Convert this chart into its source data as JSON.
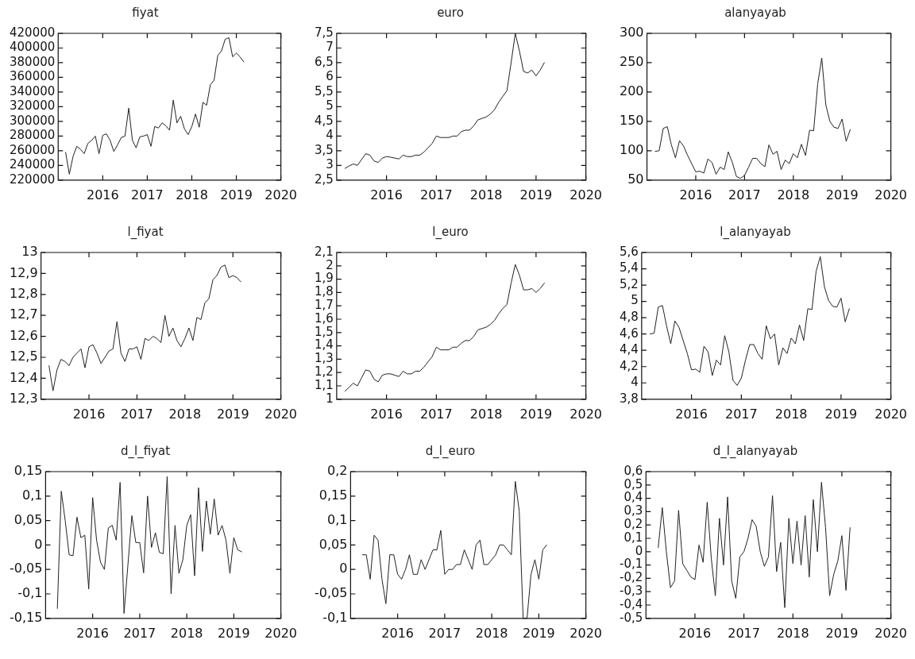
{
  "chart_data": [
    {
      "type": "line",
      "title": "fiyat",
      "x": [
        "2015-03",
        "2015-04",
        "2015-05",
        "2015-06",
        "2015-07",
        "2015-08",
        "2015-09",
        "2015-10",
        "2015-11",
        "2015-12",
        "2016-01",
        "2016-02",
        "2016-03",
        "2016-04",
        "2016-05",
        "2016-06",
        "2016-07",
        "2016-08",
        "2016-09",
        "2016-10",
        "2016-11",
        "2016-12",
        "2017-01",
        "2017-02",
        "2017-03",
        "2017-04",
        "2017-05",
        "2017-06",
        "2017-07",
        "2017-08",
        "2017-09",
        "2017-10",
        "2017-11",
        "2017-12",
        "2018-01",
        "2018-02",
        "2018-03",
        "2018-04",
        "2018-05",
        "2018-06",
        "2018-07",
        "2018-08",
        "2018-09",
        "2018-10",
        "2018-11",
        "2018-12",
        "2019-01",
        "2019-02",
        "2019-03"
      ],
      "xlim": [
        "2015",
        "2020"
      ],
      "xticks": [
        "2016",
        "2017",
        "2018",
        "2019",
        "2020"
      ],
      "ylim": [
        220000,
        420000
      ],
      "yticks": [
        220000,
        240000,
        260000,
        280000,
        300000,
        320000,
        340000,
        360000,
        380000,
        400000,
        420000
      ],
      "series": [
        {
          "color": "#222222",
          "values": [
            258000,
            228000,
            252000,
            266000,
            262000,
            256000,
            270000,
            274000,
            280000,
            256000,
            281000,
            283000,
            274000,
            259000,
            268000,
            278000,
            280000,
            318000,
            274000,
            264000,
            279000,
            280000,
            282000,
            266000,
            293000,
            291000,
            298000,
            294000,
            288000,
            329000,
            298000,
            307000,
            290000,
            282000,
            293000,
            310000,
            292000,
            326000,
            322000,
            350000,
            356000,
            390000,
            396000,
            412000,
            414000,
            388000,
            393000,
            388000,
            381000
          ]
        }
      ]
    },
    {
      "type": "line",
      "title": "euro",
      "x": [
        "2015-03",
        "2015-04",
        "2015-05",
        "2015-06",
        "2015-07",
        "2015-08",
        "2015-09",
        "2015-10",
        "2015-11",
        "2015-12",
        "2016-01",
        "2016-02",
        "2016-03",
        "2016-04",
        "2016-05",
        "2016-06",
        "2016-07",
        "2016-08",
        "2016-09",
        "2016-10",
        "2016-11",
        "2016-12",
        "2017-01",
        "2017-02",
        "2017-03",
        "2017-04",
        "2017-05",
        "2017-06",
        "2017-07",
        "2017-08",
        "2017-09",
        "2017-10",
        "2017-11",
        "2017-12",
        "2018-01",
        "2018-02",
        "2018-03",
        "2018-04",
        "2018-05",
        "2018-06",
        "2018-07",
        "2018-08",
        "2018-09",
        "2018-10",
        "2018-11",
        "2018-12",
        "2019-01",
        "2019-02",
        "2019-03"
      ],
      "xlim": [
        "2015",
        "2020"
      ],
      "xticks": [
        "2016",
        "2017",
        "2018",
        "2019",
        "2020"
      ],
      "ylim": [
        2.5,
        7.5
      ],
      "yticks": [
        {
          "value": 2.5,
          "label": "2,5"
        },
        3,
        {
          "value": 3.5,
          "label": "3,5"
        },
        4,
        {
          "value": 4.5,
          "label": "4,5"
        },
        5,
        {
          "value": 5.5,
          "label": "5,5"
        },
        6,
        {
          "value": 6.5,
          "label": "6,5"
        },
        7,
        {
          "value": 7.5,
          "label": "7,5"
        }
      ],
      "series": [
        {
          "color": "#222222",
          "values": [
            2.9,
            2.98,
            3.05,
            3.0,
            3.2,
            3.4,
            3.35,
            3.15,
            3.1,
            3.25,
            3.3,
            3.28,
            3.25,
            3.22,
            3.35,
            3.3,
            3.3,
            3.35,
            3.35,
            3.45,
            3.6,
            3.75,
            4.0,
            3.95,
            3.95,
            3.95,
            4.0,
            4.0,
            4.15,
            4.2,
            4.2,
            4.35,
            4.55,
            4.6,
            4.65,
            4.75,
            4.9,
            5.15,
            5.35,
            5.55,
            6.5,
            7.5,
            6.9,
            6.2,
            6.15,
            6.25,
            6.05,
            6.25,
            6.5
          ]
        }
      ]
    },
    {
      "type": "line",
      "title": "alanyayab",
      "x": [
        "2015-03",
        "2015-04",
        "2015-05",
        "2015-06",
        "2015-07",
        "2015-08",
        "2015-09",
        "2015-10",
        "2015-11",
        "2015-12",
        "2016-01",
        "2016-02",
        "2016-03",
        "2016-04",
        "2016-05",
        "2016-06",
        "2016-07",
        "2016-08",
        "2016-09",
        "2016-10",
        "2016-11",
        "2016-12",
        "2017-01",
        "2017-02",
        "2017-03",
        "2017-04",
        "2017-05",
        "2017-06",
        "2017-07",
        "2017-08",
        "2017-09",
        "2017-10",
        "2017-11",
        "2017-12",
        "2018-01",
        "2018-02",
        "2018-03",
        "2018-04",
        "2018-05",
        "2018-06",
        "2018-07",
        "2018-08",
        "2018-09",
        "2018-10",
        "2018-11",
        "2018-12",
        "2019-01",
        "2019-02",
        "2019-03"
      ],
      "xlim": [
        "2015",
        "2020"
      ],
      "xticks": [
        "2016",
        "2017",
        "2018",
        "2019",
        "2020"
      ],
      "ylim": [
        50,
        300
      ],
      "yticks": [
        50,
        100,
        150,
        200,
        250,
        300
      ],
      "series": [
        {
          "color": "#222222",
          "values": [
            99,
            100,
            138,
            141,
            110,
            88,
            117,
            108,
            92,
            78,
            64,
            65,
            62,
            86,
            80,
            60,
            72,
            68,
            98,
            80,
            56,
            53,
            58,
            72,
            87,
            87,
            78,
            73,
            110,
            94,
            99,
            68,
            84,
            78,
            95,
            88,
            111,
            92,
            135,
            134,
            214,
            258,
            178,
            150,
            140,
            138,
            154,
            116,
            136
          ]
        }
      ]
    },
    {
      "type": "line",
      "title": "l_fiyat",
      "x": [
        "2015-03",
        "2015-04",
        "2015-05",
        "2015-06",
        "2015-07",
        "2015-08",
        "2015-09",
        "2015-10",
        "2015-11",
        "2015-12",
        "2016-01",
        "2016-02",
        "2016-03",
        "2016-04",
        "2016-05",
        "2016-06",
        "2016-07",
        "2016-08",
        "2016-09",
        "2016-10",
        "2016-11",
        "2016-12",
        "2017-01",
        "2017-02",
        "2017-03",
        "2017-04",
        "2017-05",
        "2017-06",
        "2017-07",
        "2017-08",
        "2017-09",
        "2017-10",
        "2017-11",
        "2017-12",
        "2018-01",
        "2018-02",
        "2018-03",
        "2018-04",
        "2018-05",
        "2018-06",
        "2018-07",
        "2018-08",
        "2018-09",
        "2018-10",
        "2018-11",
        "2018-12",
        "2019-01",
        "2019-02",
        "2019-03"
      ],
      "xlim": [
        "2015",
        "2020"
      ],
      "xticks": [
        "2016",
        "2017",
        "2018",
        "2019",
        "2020"
      ],
      "ylim": [
        12.3,
        13
      ],
      "yticks": [
        {
          "value": 12.3,
          "label": "12,3"
        },
        {
          "value": 12.4,
          "label": "12,4"
        },
        {
          "value": 12.5,
          "label": "12,5"
        },
        {
          "value": 12.6,
          "label": "12,6"
        },
        {
          "value": 12.7,
          "label": "12,7"
        },
        {
          "value": 12.8,
          "label": "12,8"
        },
        {
          "value": 12.9,
          "label": "12,9"
        },
        13
      ],
      "series": [
        {
          "color": "#222222",
          "values": [
            12.46,
            12.34,
            12.44,
            12.49,
            12.48,
            12.46,
            12.5,
            12.52,
            12.54,
            12.45,
            12.55,
            12.56,
            12.52,
            12.47,
            12.5,
            12.53,
            12.54,
            12.67,
            12.52,
            12.48,
            12.54,
            12.54,
            12.55,
            12.49,
            12.59,
            12.58,
            12.6,
            12.59,
            12.57,
            12.7,
            12.6,
            12.64,
            12.58,
            12.55,
            12.59,
            12.64,
            12.58,
            12.69,
            12.68,
            12.76,
            12.78,
            12.87,
            12.89,
            12.93,
            12.94,
            12.88,
            12.89,
            12.88,
            12.86
          ]
        }
      ]
    },
    {
      "type": "line",
      "title": "l_euro",
      "x": [
        "2015-03",
        "2015-04",
        "2015-05",
        "2015-06",
        "2015-07",
        "2015-08",
        "2015-09",
        "2015-10",
        "2015-11",
        "2015-12",
        "2016-01",
        "2016-02",
        "2016-03",
        "2016-04",
        "2016-05",
        "2016-06",
        "2016-07",
        "2016-08",
        "2016-09",
        "2016-10",
        "2016-11",
        "2016-12",
        "2017-01",
        "2017-02",
        "2017-03",
        "2017-04",
        "2017-05",
        "2017-06",
        "2017-07",
        "2017-08",
        "2017-09",
        "2017-10",
        "2017-11",
        "2017-12",
        "2018-01",
        "2018-02",
        "2018-03",
        "2018-04",
        "2018-05",
        "2018-06",
        "2018-07",
        "2018-08",
        "2018-09",
        "2018-10",
        "2018-11",
        "2018-12",
        "2019-01",
        "2019-02",
        "2019-03"
      ],
      "xlim": [
        "2015",
        "2020"
      ],
      "xticks": [
        "2016",
        "2017",
        "2018",
        "2019",
        "2020"
      ],
      "ylim": [
        1,
        2.1
      ],
      "yticks": [
        1,
        {
          "value": 1.1,
          "label": "1,1"
        },
        {
          "value": 1.2,
          "label": "1,2"
        },
        {
          "value": 1.3,
          "label": "1,3"
        },
        {
          "value": 1.4,
          "label": "1,4"
        },
        {
          "value": 1.5,
          "label": "1,5"
        },
        {
          "value": 1.6,
          "label": "1,6"
        },
        {
          "value": 1.7,
          "label": "1,7"
        },
        {
          "value": 1.8,
          "label": "1,8"
        },
        {
          "value": 1.9,
          "label": "1,9"
        },
        2,
        {
          "value": 2.1,
          "label": "2,1"
        }
      ],
      "series": [
        {
          "color": "#222222",
          "values": [
            1.06,
            1.09,
            1.12,
            1.1,
            1.16,
            1.22,
            1.21,
            1.15,
            1.13,
            1.18,
            1.19,
            1.19,
            1.18,
            1.17,
            1.21,
            1.19,
            1.19,
            1.21,
            1.21,
            1.24,
            1.28,
            1.32,
            1.39,
            1.37,
            1.37,
            1.37,
            1.39,
            1.39,
            1.42,
            1.44,
            1.44,
            1.47,
            1.52,
            1.53,
            1.54,
            1.56,
            1.59,
            1.64,
            1.68,
            1.71,
            1.87,
            2.01,
            1.93,
            1.82,
            1.82,
            1.83,
            1.8,
            1.83,
            1.87
          ]
        }
      ]
    },
    {
      "type": "line",
      "title": "l_alanyayab",
      "x": [
        "2015-03",
        "2015-04",
        "2015-05",
        "2015-06",
        "2015-07",
        "2015-08",
        "2015-09",
        "2015-10",
        "2015-11",
        "2015-12",
        "2016-01",
        "2016-02",
        "2016-03",
        "2016-04",
        "2016-05",
        "2016-06",
        "2016-07",
        "2016-08",
        "2016-09",
        "2016-10",
        "2016-11",
        "2016-12",
        "2017-01",
        "2017-02",
        "2017-03",
        "2017-04",
        "2017-05",
        "2017-06",
        "2017-07",
        "2017-08",
        "2017-09",
        "2017-10",
        "2017-11",
        "2017-12",
        "2018-01",
        "2018-02",
        "2018-03",
        "2018-04",
        "2018-05",
        "2018-06",
        "2018-07",
        "2018-08",
        "2018-09",
        "2018-10",
        "2018-11",
        "2018-12",
        "2019-01",
        "2019-02",
        "2019-03"
      ],
      "xlim": [
        "2015",
        "2020"
      ],
      "xticks": [
        "2016",
        "2017",
        "2018",
        "2019",
        "2020"
      ],
      "ylim": [
        3.8,
        5.6
      ],
      "yticks": [
        {
          "value": 3.8,
          "label": "3,8"
        },
        4,
        {
          "value": 4.2,
          "label": "4,2"
        },
        {
          "value": 4.4,
          "label": "4,4"
        },
        {
          "value": 4.6,
          "label": "4,6"
        },
        {
          "value": 4.8,
          "label": "4,8"
        },
        5,
        {
          "value": 5.2,
          "label": "5,2"
        },
        {
          "value": 5.4,
          "label": "5,4"
        },
        {
          "value": 5.6,
          "label": "5,6"
        }
      ],
      "series": [
        {
          "color": "#222222",
          "values": [
            4.6,
            4.61,
            4.93,
            4.95,
            4.7,
            4.48,
            4.76,
            4.68,
            4.52,
            4.36,
            4.16,
            4.17,
            4.13,
            4.45,
            4.38,
            4.09,
            4.28,
            4.22,
            4.58,
            4.38,
            4.03,
            3.97,
            4.06,
            4.28,
            4.47,
            4.47,
            4.36,
            4.29,
            4.7,
            4.54,
            4.6,
            4.22,
            4.43,
            4.36,
            4.55,
            4.48,
            4.71,
            4.52,
            4.91,
            4.9,
            5.37,
            5.55,
            5.18,
            5.01,
            4.94,
            4.93,
            5.04,
            4.75,
            4.91
          ]
        }
      ]
    },
    {
      "type": "line",
      "title": "d_l_fiyat",
      "x": [
        "2015-04",
        "2015-05",
        "2015-06",
        "2015-07",
        "2015-08",
        "2015-09",
        "2015-10",
        "2015-11",
        "2015-12",
        "2016-01",
        "2016-02",
        "2016-03",
        "2016-04",
        "2016-05",
        "2016-06",
        "2016-07",
        "2016-08",
        "2016-09",
        "2016-10",
        "2016-11",
        "2016-12",
        "2017-01",
        "2017-02",
        "2017-03",
        "2017-04",
        "2017-05",
        "2017-06",
        "2017-07",
        "2017-08",
        "2017-09",
        "2017-10",
        "2017-11",
        "2017-12",
        "2018-01",
        "2018-02",
        "2018-03",
        "2018-04",
        "2018-05",
        "2018-06",
        "2018-07",
        "2018-08",
        "2018-09",
        "2018-10",
        "2018-11",
        "2018-12",
        "2019-01",
        "2019-02",
        "2019-03"
      ],
      "xlim": [
        "2015",
        "2020"
      ],
      "xticks": [
        "2016",
        "2017",
        "2018",
        "2019",
        "2020"
      ],
      "ylim": [
        -0.15,
        0.15
      ],
      "yticks": [
        {
          "value": -0.15,
          "label": "-0,15"
        },
        {
          "value": -0.1,
          "label": "-0,1"
        },
        {
          "value": -0.05,
          "label": "-0,05"
        },
        0,
        {
          "value": 0.05,
          "label": "0,05"
        },
        {
          "value": 0.1,
          "label": "0,1"
        },
        {
          "value": 0.15,
          "label": "0,15"
        }
      ],
      "series": [
        {
          "color": "#222222",
          "values": [
            -0.13,
            0.11,
            0.05,
            -0.02,
            -0.022,
            0.057,
            0.015,
            0.02,
            -0.09,
            0.097,
            0.01,
            -0.035,
            -0.05,
            0.035,
            0.04,
            0.01,
            0.128,
            -0.14,
            -0.04,
            0.06,
            0.005,
            0.005,
            -0.057,
            0.1,
            -0.005,
            0.025,
            -0.015,
            -0.018,
            0.14,
            -0.1,
            0.04,
            -0.058,
            -0.03,
            0.04,
            0.062,
            -0.063,
            0.117,
            -0.013,
            0.09,
            0.022,
            0.094,
            0.02,
            0.04,
            0.01,
            -0.058,
            0.015,
            -0.01,
            -0.014
          ]
        }
      ]
    },
    {
      "type": "line",
      "title": "d_l_euro",
      "x": [
        "2015-04",
        "2015-05",
        "2015-06",
        "2015-07",
        "2015-08",
        "2015-09",
        "2015-10",
        "2015-11",
        "2015-12",
        "2016-01",
        "2016-02",
        "2016-03",
        "2016-04",
        "2016-05",
        "2016-06",
        "2016-07",
        "2016-08",
        "2016-09",
        "2016-10",
        "2016-11",
        "2016-12",
        "2017-01",
        "2017-02",
        "2017-03",
        "2017-04",
        "2017-05",
        "2017-06",
        "2017-07",
        "2017-08",
        "2017-09",
        "2017-10",
        "2017-11",
        "2017-12",
        "2018-01",
        "2018-02",
        "2018-03",
        "2018-04",
        "2018-05",
        "2018-06",
        "2018-07",
        "2018-08",
        "2018-09",
        "2018-10",
        "2018-11",
        "2018-12",
        "2019-01",
        "2019-02",
        "2019-03"
      ],
      "xlim": [
        "2015",
        "2020"
      ],
      "xticks": [
        "2016",
        "2017",
        "2018",
        "2019",
        "2020"
      ],
      "ylim": [
        -0.1,
        0.2
      ],
      "yticks": [
        {
          "value": -0.1,
          "label": "-0,1"
        },
        {
          "value": -0.05,
          "label": "-0,05"
        },
        0,
        {
          "value": 0.05,
          "label": "0,05"
        },
        {
          "value": 0.1,
          "label": "0,1"
        },
        {
          "value": 0.15,
          "label": "0,15"
        },
        {
          "value": 0.2,
          "label": "0,2"
        }
      ],
      "series": [
        {
          "color": "#222222",
          "values": [
            0.03,
            0.03,
            -0.02,
            0.07,
            0.06,
            -0.02,
            -0.07,
            0.03,
            0.03,
            -0.01,
            -0.02,
            0,
            0.03,
            -0.01,
            -0.01,
            0.02,
            0,
            0.02,
            0.04,
            0.04,
            0.08,
            -0.01,
            0,
            0,
            0.01,
            0.01,
            0.04,
            0.02,
            0,
            0.05,
            0.06,
            0.01,
            0.01,
            0.02,
            0.03,
            0.05,
            0.05,
            0.04,
            0.03,
            0.18,
            0.12,
            -0.1,
            -0.1,
            -0.01,
            0.02,
            -0.02,
            0.04,
            0.05
          ]
        }
      ]
    },
    {
      "type": "line",
      "title": "d_l_alanyayab",
      "x": [
        "2015-04",
        "2015-05",
        "2015-06",
        "2015-07",
        "2015-08",
        "2015-09",
        "2015-10",
        "2015-11",
        "2015-12",
        "2016-01",
        "2016-02",
        "2016-03",
        "2016-04",
        "2016-05",
        "2016-06",
        "2016-07",
        "2016-08",
        "2016-09",
        "2016-10",
        "2016-11",
        "2016-12",
        "2017-01",
        "2017-02",
        "2017-03",
        "2017-04",
        "2017-05",
        "2017-06",
        "2017-07",
        "2017-08",
        "2017-09",
        "2017-10",
        "2017-11",
        "2017-12",
        "2018-01",
        "2018-02",
        "2018-03",
        "2018-04",
        "2018-05",
        "2018-06",
        "2018-07",
        "2018-08",
        "2018-09",
        "2018-10",
        "2018-11",
        "2018-12",
        "2019-01",
        "2019-02",
        "2019-03"
      ],
      "xlim": [
        "2015",
        "2020"
      ],
      "xticks": [
        "2016",
        "2017",
        "2018",
        "2019",
        "2020"
      ],
      "ylim": [
        -0.5,
        0.6
      ],
      "yticks": [
        {
          "value": -0.5,
          "label": "-0,5"
        },
        {
          "value": -0.4,
          "label": "-0,4"
        },
        {
          "value": -0.3,
          "label": "-0,3"
        },
        {
          "value": -0.2,
          "label": "-0,2"
        },
        {
          "value": -0.1,
          "label": "-0,1"
        },
        0,
        {
          "value": 0.1,
          "label": "0,1"
        },
        {
          "value": 0.2,
          "label": "0,2"
        },
        {
          "value": 0.3,
          "label": "0,3"
        },
        {
          "value": 0.4,
          "label": "0,4"
        },
        {
          "value": 0.5,
          "label": "0,5"
        },
        {
          "value": 0.6,
          "label": "0,6"
        }
      ],
      "series": [
        {
          "color": "#222222",
          "values": [
            0.03,
            0.33,
            0,
            -0.27,
            -0.22,
            0.31,
            -0.09,
            -0.14,
            -0.19,
            -0.21,
            0.05,
            -0.08,
            0.37,
            -0.05,
            -0.33,
            0.25,
            -0.1,
            0.41,
            -0.22,
            -0.35,
            -0.04,
            0,
            0.1,
            0.24,
            0.19,
            0,
            -0.11,
            -0.04,
            0.42,
            -0.15,
            0.07,
            -0.42,
            0.25,
            -0.09,
            0.23,
            -0.1,
            0.27,
            -0.19,
            0.39,
            0,
            0.52,
            0.18,
            -0.33,
            -0.17,
            -0.07,
            0.12,
            -0.29,
            0.18
          ]
        }
      ]
    }
  ]
}
